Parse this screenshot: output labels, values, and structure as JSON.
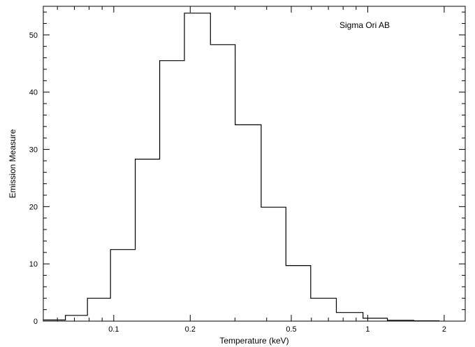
{
  "chart_data": {
    "type": "step-histogram",
    "title": "",
    "xlabel": "Temperature (keV)",
    "ylabel": "Emission Measure",
    "annotation": "Sigma Ori AB",
    "x_scale": "log",
    "xlim": [
      0.0528,
      2.42
    ],
    "ylim": [
      0,
      55
    ],
    "grid": false,
    "x_ticks": [
      {
        "value": 0.1,
        "label": "0.1"
      },
      {
        "value": 0.2,
        "label": "0.2"
      },
      {
        "value": 0.5,
        "label": "0.5"
      },
      {
        "value": 1,
        "label": "1"
      },
      {
        "value": 2,
        "label": "2"
      }
    ],
    "y_ticks": [
      {
        "value": 0,
        "label": "0"
      },
      {
        "value": 10,
        "label": "10"
      },
      {
        "value": 20,
        "label": "20"
      },
      {
        "value": 30,
        "label": "30"
      },
      {
        "value": 40,
        "label": "40"
      },
      {
        "value": 50,
        "label": "50"
      }
    ],
    "bin_edges": [
      0.0528,
      0.0645,
      0.0788,
      0.0971,
      0.1215,
      0.1516,
      0.1898,
      0.2403,
      0.3007,
      0.3807,
      0.4763,
      0.5961,
      0.7525,
      0.9583,
      1.1953,
      1.5173,
      1.9169
    ],
    "values": [
      0.2,
      1.0,
      4.0,
      12.5,
      28.3,
      45.5,
      53.8,
      48.3,
      34.3,
      19.9,
      9.7,
      4.0,
      1.5,
      0.5,
      0.15,
      0.05
    ]
  }
}
